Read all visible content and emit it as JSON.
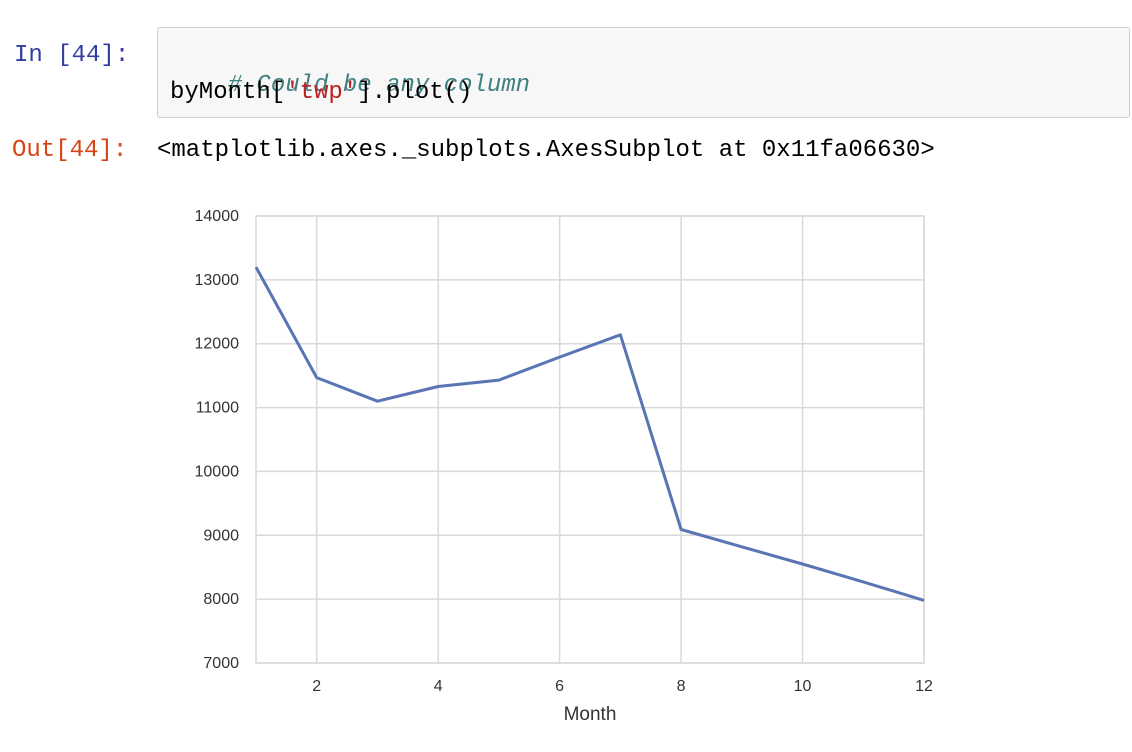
{
  "cell": {
    "in_prompt": "In [44]:",
    "code_comment": "# Could be any column",
    "code_prefix": "byMonth[",
    "code_string": "'twp'",
    "code_suffix": "].plot()",
    "out_prompt": "Out[44]:",
    "output_text": "<matplotlib.axes._subplots.AxesSubplot at 0x11fa06630>"
  },
  "colors": {
    "line": "#5975b3",
    "grid": "#d9d9d9",
    "in_prompt": "#303f9f",
    "out_prompt": "#d84315"
  },
  "chart_data": {
    "type": "line",
    "title": "",
    "xlabel": "Month",
    "ylabel": "",
    "x": [
      1,
      2,
      3,
      4,
      5,
      6,
      7,
      8,
      9,
      10,
      11,
      12
    ],
    "series": [
      {
        "values": [
          13200,
          11470,
          11100,
          11330,
          11430,
          11790,
          12140,
          9090,
          8820,
          8550,
          8270,
          7980
        ]
      }
    ],
    "xlim": [
      1,
      12
    ],
    "ylim": [
      7000,
      14000
    ],
    "xticks": [
      2,
      4,
      6,
      8,
      10,
      12
    ],
    "xtick_labels": [
      "2",
      "4",
      "6",
      "8",
      "10",
      "12"
    ],
    "yticks": [
      7000,
      8000,
      9000,
      10000,
      11000,
      12000,
      13000,
      14000
    ],
    "ytick_labels": [
      "7000",
      "8000",
      "9000",
      "10000",
      "11000",
      "12000",
      "13000",
      "14000"
    ],
    "grid": true,
    "legend": false
  }
}
